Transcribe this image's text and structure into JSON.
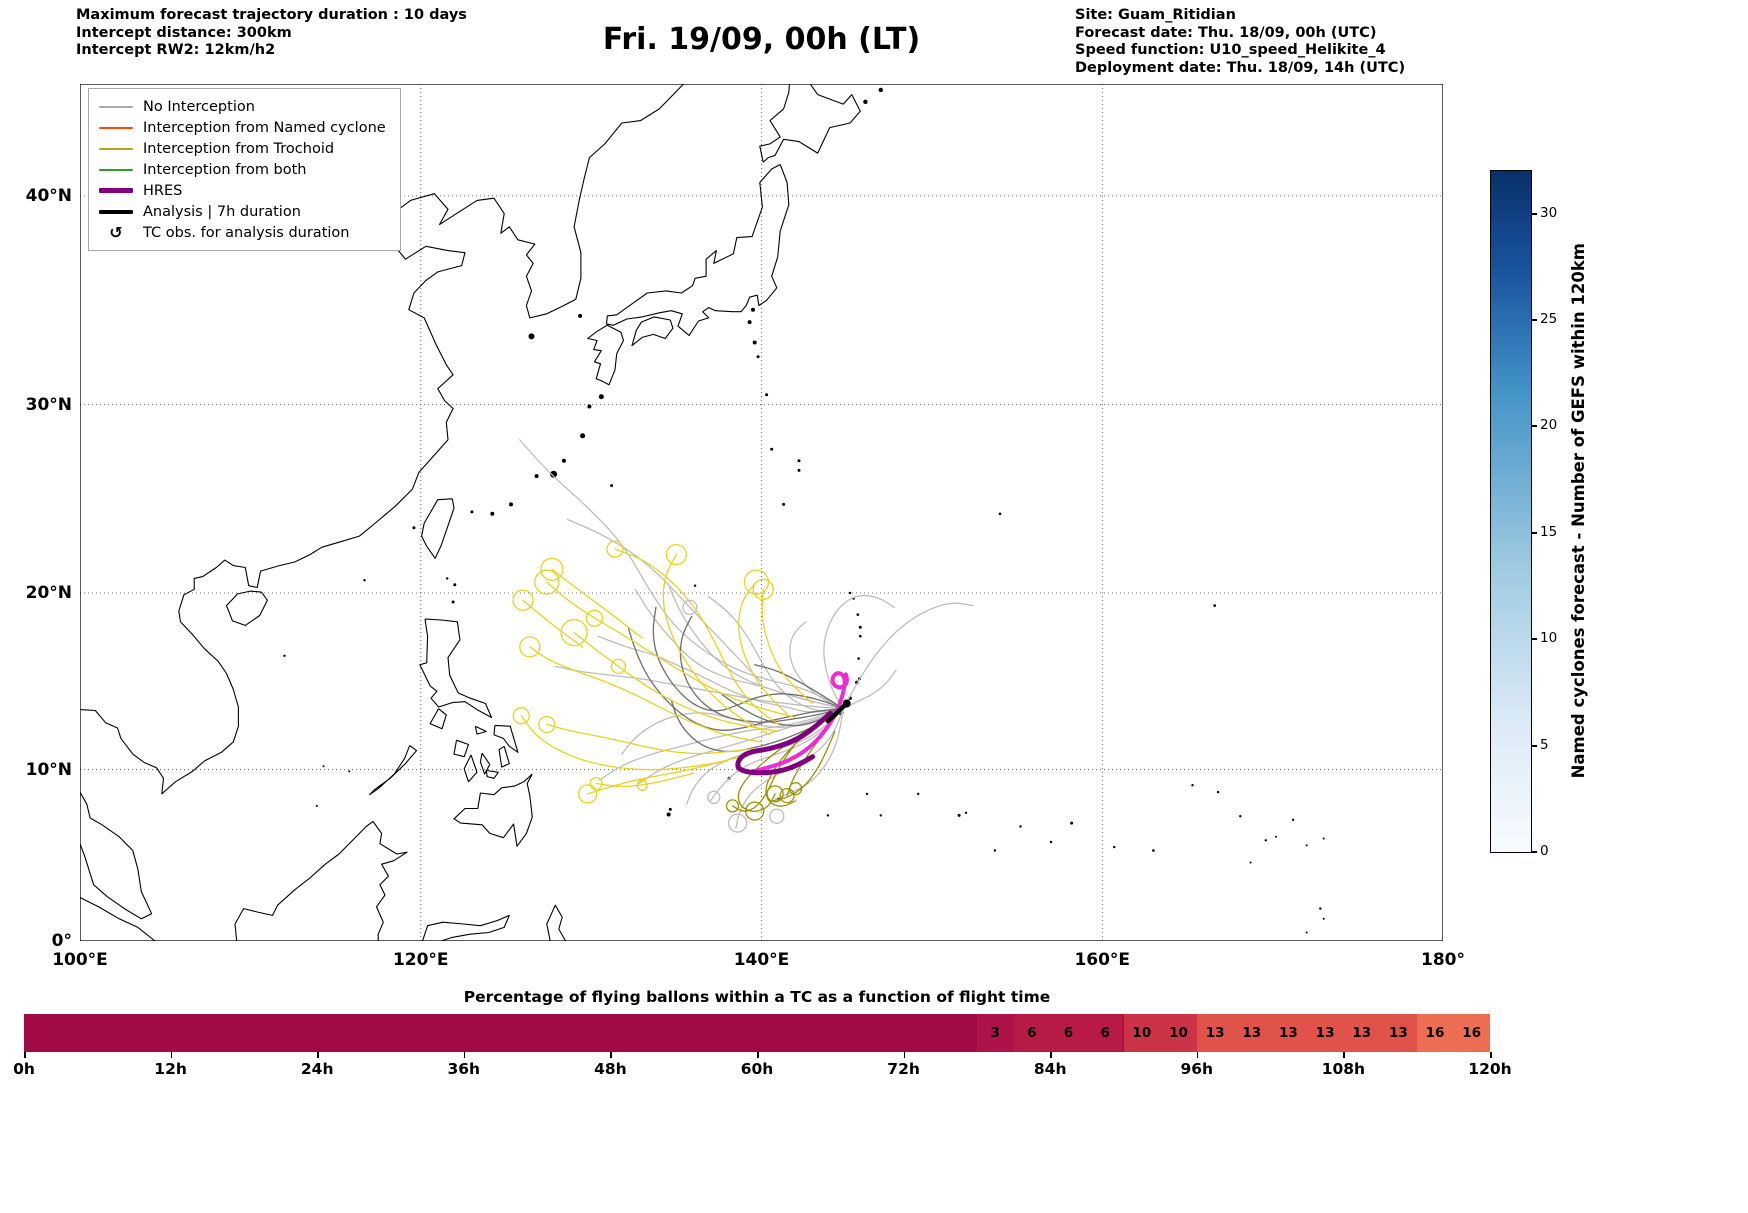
{
  "header": {
    "left_lines": [
      "Maximum forecast trajectory duration : 10 days",
      "Intercept distance: 300km",
      "Intercept RW2: 12km/h2"
    ],
    "title": "Fri. 19/09, 00h (LT)",
    "right_lines": [
      "Site: Guam_Ritidian",
      "Forecast date: Thu. 18/09, 00h (UTC)",
      "Speed function: U10_speed_Helikite_4",
      "Deployment date: Thu. 18/09, 14h (UTC)"
    ]
  },
  "map": {
    "x_ticks": [
      {
        "label": "100°E",
        "lon": 100
      },
      {
        "label": "120°E",
        "lon": 120
      },
      {
        "label": "140°E",
        "lon": 140
      },
      {
        "label": "160°E",
        "lon": 160
      },
      {
        "label": "180°",
        "lon": 180
      }
    ],
    "y_ticks": [
      {
        "label": "0°",
        "lat": 0
      },
      {
        "label": "10°N",
        "lat": 10
      },
      {
        "label": "20°N",
        "lat": 20
      },
      {
        "label": "30°N",
        "lat": 30
      },
      {
        "label": "40°N",
        "lat": 40
      }
    ],
    "legend_items": [
      {
        "label": "No Interception",
        "type": "line",
        "color": "#a9a9a9",
        "lw": 2
      },
      {
        "label": "Interception from Named cyclone",
        "type": "line",
        "color": "#ff4500",
        "lw": 2
      },
      {
        "label": "Interception from Trochoid",
        "type": "line",
        "color": "#b5a419",
        "lw": 2
      },
      {
        "label": "Interception from both",
        "type": "line",
        "color": "#2a9d2a",
        "lw": 2
      },
      {
        "label": "HRES",
        "type": "line",
        "color": "#800080",
        "lw": 5
      },
      {
        "label": "Analysis | 7h duration",
        "type": "line",
        "color": "#000000",
        "lw": 4
      },
      {
        "label": "TC obs. for analysis duration",
        "type": "symbol",
        "symbol": "↺",
        "color": "#000000"
      }
    ],
    "colors": {
      "no_interception_light": "#bdbdbd",
      "no_interception_dark": "#6e6e6e",
      "trochoid_yellow": "#e8d41c",
      "trochoid_olive": "#9b9203",
      "hres_purple": "#800080",
      "obs_magenta": "#ee2ad6",
      "analysis_black": "#000000",
      "coast": "#000000"
    }
  },
  "colorbar": {
    "label": "Named cyclones forecast - Number of GEFS within 120km",
    "ticks": [
      0,
      5,
      10,
      15,
      20,
      25,
      30
    ],
    "vmin": 0,
    "vmax": 32
  },
  "bottom_chart": {
    "title": "Percentage of flying ballons within a TC as a function of flight time",
    "base_color": "#a20a45",
    "xlim_hours": [
      0,
      120
    ],
    "x_ticks": [
      {
        "label": "0h",
        "hour": 0
      },
      {
        "label": "12h",
        "hour": 12
      },
      {
        "label": "24h",
        "hour": 24
      },
      {
        "label": "36h",
        "hour": 36
      },
      {
        "label": "48h",
        "hour": 48
      },
      {
        "label": "60h",
        "hour": 60
      },
      {
        "label": "72h",
        "hour": 72
      },
      {
        "label": "84h",
        "hour": 84
      },
      {
        "label": "96h",
        "hour": 96
      },
      {
        "label": "108h",
        "hour": 108
      },
      {
        "label": "120h",
        "hour": 120
      }
    ],
    "segments": [
      {
        "start_h": 78,
        "end_h": 81,
        "value": 3,
        "color": "#ad1348"
      },
      {
        "start_h": 81,
        "end_h": 84,
        "value": 6,
        "color": "#b71a44"
      },
      {
        "start_h": 84,
        "end_h": 87,
        "value": 6,
        "color": "#b71a44"
      },
      {
        "start_h": 87,
        "end_h": 90,
        "value": 6,
        "color": "#b71a44"
      },
      {
        "start_h": 90,
        "end_h": 93,
        "value": 10,
        "color": "#cd3347"
      },
      {
        "start_h": 93,
        "end_h": 96,
        "value": 10,
        "color": "#cd3347"
      },
      {
        "start_h": 96,
        "end_h": 99,
        "value": 13,
        "color": "#e0534b"
      },
      {
        "start_h": 99,
        "end_h": 102,
        "value": 13,
        "color": "#e0534b"
      },
      {
        "start_h": 102,
        "end_h": 105,
        "value": 13,
        "color": "#e0534b"
      },
      {
        "start_h": 105,
        "end_h": 108,
        "value": 13,
        "color": "#e0534b"
      },
      {
        "start_h": 108,
        "end_h": 111,
        "value": 13,
        "color": "#e0534b"
      },
      {
        "start_h": 111,
        "end_h": 114,
        "value": 13,
        "color": "#e0534b"
      },
      {
        "start_h": 114,
        "end_h": 117,
        "value": 16,
        "color": "#ec6e52"
      },
      {
        "start_h": 117,
        "end_h": 120,
        "value": 16,
        "color": "#ec6e52"
      }
    ]
  },
  "chart_data": {
    "type": "bar",
    "title": "Percentage of flying ballons within a TC as a function of flight time",
    "x_bin_start_hours": [
      78,
      81,
      84,
      87,
      90,
      93,
      96,
      99,
      102,
      105,
      108,
      111,
      114,
      117
    ],
    "bin_width_hours": 3,
    "values": [
      3,
      6,
      6,
      6,
      10,
      10,
      13,
      13,
      13,
      13,
      13,
      13,
      16,
      16
    ],
    "xlim": [
      0,
      120
    ],
    "x_tick_labels": [
      "0h",
      "12h",
      "24h",
      "36h",
      "48h",
      "60h",
      "72h",
      "84h",
      "96h",
      "108h",
      "120h"
    ],
    "colorbar": {
      "label": "Named cyclones forecast - Number of GEFS within 120km",
      "ticks": [
        0,
        5,
        10,
        15,
        20,
        25,
        30
      ],
      "range": [
        0,
        32
      ]
    }
  }
}
